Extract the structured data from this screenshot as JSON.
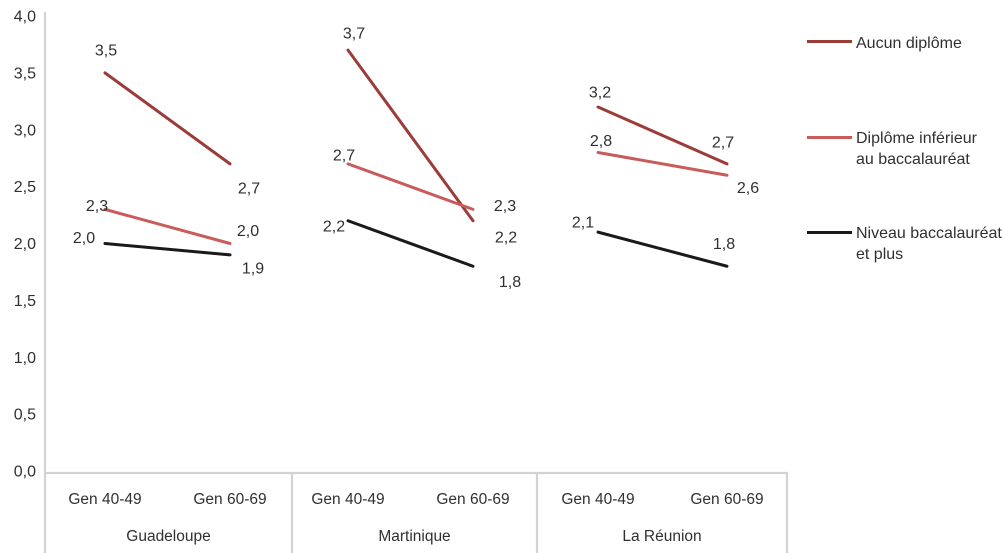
{
  "chart_data": {
    "type": "line",
    "subtype": "slope-chart",
    "title": "",
    "xlabel": "",
    "ylabel": "",
    "ylim": [
      0.0,
      4.0
    ],
    "ytick_step": 0.5,
    "ytick_labels": [
      "0,0",
      "0,5",
      "1,0",
      "1,5",
      "2,0",
      "2,5",
      "3,0",
      "3,5",
      "4,0"
    ],
    "decimal_separator": ",",
    "grid": false,
    "data_labels": true,
    "categories": [
      "Gen 40-49",
      "Gen 60-69"
    ],
    "panels": [
      "Guadeloupe",
      "Martinique",
      "La Réunion"
    ],
    "series": [
      {
        "name": "Aucun diplôme",
        "color": "#9b3c39",
        "values_by_panel": [
          [
            3.5,
            2.7
          ],
          [
            3.7,
            2.2
          ],
          [
            3.2,
            2.7
          ]
        ],
        "labels_by_panel": [
          [
            "3,5",
            "2,7"
          ],
          [
            "3,7",
            "2,2"
          ],
          [
            "3,2",
            "2,7"
          ]
        ]
      },
      {
        "name": "Diplôme inférieur au baccalauréat",
        "color": "#c85c5a",
        "values_by_panel": [
          [
            2.3,
            2.0
          ],
          [
            2.7,
            2.3
          ],
          [
            2.8,
            2.6
          ]
        ],
        "labels_by_panel": [
          [
            "2,3",
            "2,0"
          ],
          [
            "2,7",
            "2,3"
          ],
          [
            "2,8",
            "2,6"
          ]
        ]
      },
      {
        "name": "Niveau baccalauréat et plus",
        "color": "#1a1a1a",
        "values_by_panel": [
          [
            2.0,
            1.9
          ],
          [
            2.2,
            1.8
          ],
          [
            2.1,
            1.8
          ]
        ],
        "labels_by_panel": [
          [
            "2,0",
            "1,9"
          ],
          [
            "2,2",
            "1,8"
          ],
          [
            "2,1",
            "1,8"
          ]
        ]
      }
    ],
    "legend": {
      "position": "right",
      "entries": [
        {
          "label_lines": [
            "Aucun diplôme"
          ],
          "color": "#9b3c39"
        },
        {
          "label_lines": [
            "Diplôme inférieur",
            "au baccalauréat"
          ],
          "color": "#c85c5a"
        },
        {
          "label_lines": [
            "Niveau baccalauréat",
            "et plus"
          ],
          "color": "#1a1a1a"
        }
      ]
    },
    "colors": {
      "axis": "#d3d3d3",
      "text": "#303030",
      "background": "#ffffff"
    }
  }
}
